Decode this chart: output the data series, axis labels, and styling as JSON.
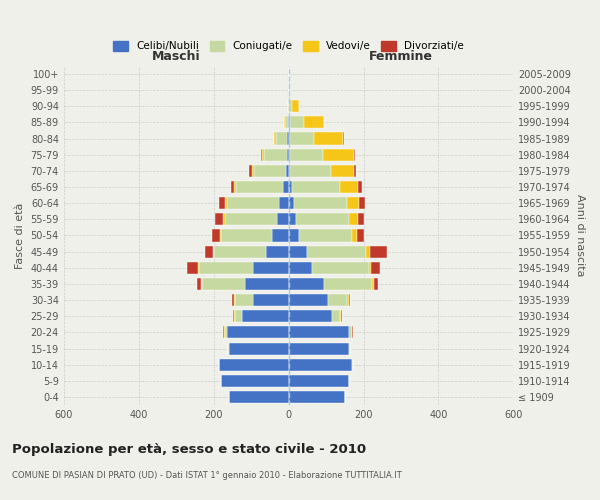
{
  "age_groups": [
    "100+",
    "95-99",
    "90-94",
    "85-89",
    "80-84",
    "75-79",
    "70-74",
    "65-69",
    "60-64",
    "55-59",
    "50-54",
    "45-49",
    "40-44",
    "35-39",
    "30-34",
    "25-29",
    "20-24",
    "15-19",
    "10-14",
    "5-9",
    "0-4"
  ],
  "birth_years": [
    "≤ 1909",
    "1910-1914",
    "1915-1919",
    "1920-1924",
    "1925-1929",
    "1930-1934",
    "1935-1939",
    "1940-1944",
    "1945-1949",
    "1950-1954",
    "1955-1959",
    "1960-1964",
    "1965-1969",
    "1970-1974",
    "1975-1979",
    "1980-1984",
    "1985-1989",
    "1990-1994",
    "1995-1999",
    "2000-2004",
    "2005-2009"
  ],
  "maschi": {
    "celibi": [
      0,
      0,
      0,
      2,
      4,
      5,
      8,
      15,
      25,
      30,
      45,
      60,
      95,
      115,
      95,
      125,
      165,
      160,
      185,
      180,
      160
    ],
    "coniugati": [
      0,
      0,
      2,
      8,
      30,
      60,
      85,
      125,
      140,
      140,
      135,
      140,
      145,
      115,
      48,
      18,
      5,
      3,
      2,
      0,
      0
    ],
    "vedovi": [
      0,
      0,
      0,
      3,
      5,
      5,
      5,
      5,
      5,
      4,
      3,
      3,
      3,
      3,
      3,
      2,
      2,
      0,
      0,
      0,
      0
    ],
    "divorziati": [
      0,
      0,
      0,
      0,
      0,
      3,
      8,
      10,
      15,
      22,
      22,
      20,
      28,
      12,
      5,
      3,
      2,
      0,
      0,
      0,
      0
    ]
  },
  "femmine": {
    "nubili": [
      0,
      0,
      2,
      4,
      5,
      5,
      5,
      10,
      15,
      20,
      28,
      48,
      62,
      95,
      105,
      115,
      160,
      160,
      170,
      160,
      150
    ],
    "coniugate": [
      0,
      2,
      8,
      38,
      62,
      88,
      108,
      128,
      142,
      142,
      142,
      158,
      152,
      128,
      52,
      22,
      8,
      3,
      2,
      0,
      0
    ],
    "vedove": [
      0,
      3,
      18,
      52,
      78,
      82,
      62,
      48,
      32,
      22,
      12,
      10,
      5,
      5,
      3,
      2,
      2,
      0,
      0,
      0,
      0
    ],
    "divorziate": [
      0,
      0,
      0,
      0,
      3,
      3,
      5,
      10,
      15,
      18,
      20,
      48,
      25,
      12,
      5,
      3,
      2,
      0,
      0,
      0,
      0
    ]
  },
  "colors": {
    "celibi_nubili": "#4472c4",
    "coniugati": "#c5d9a0",
    "vedovi": "#f5c518",
    "divorziati": "#c0392b"
  },
  "xlim": 600,
  "title": "Popolazione per età, sesso e stato civile - 2010",
  "subtitle": "COMUNE DI PASIAN DI PRATO (UD) - Dati ISTAT 1° gennaio 2010 - Elaborazione TUTTITALIA.IT",
  "ylabel_left": "Fasce di età",
  "ylabel_right": "Anni di nascita",
  "xlabel_maschi": "Maschi",
  "xlabel_femmine": "Femmine",
  "legend_labels": [
    "Celibi/Nubili",
    "Coniugati/e",
    "Vedovi/e",
    "Divorziati/e"
  ],
  "bg_color": "#f0f0eb",
  "grid_color": "#cccccc"
}
